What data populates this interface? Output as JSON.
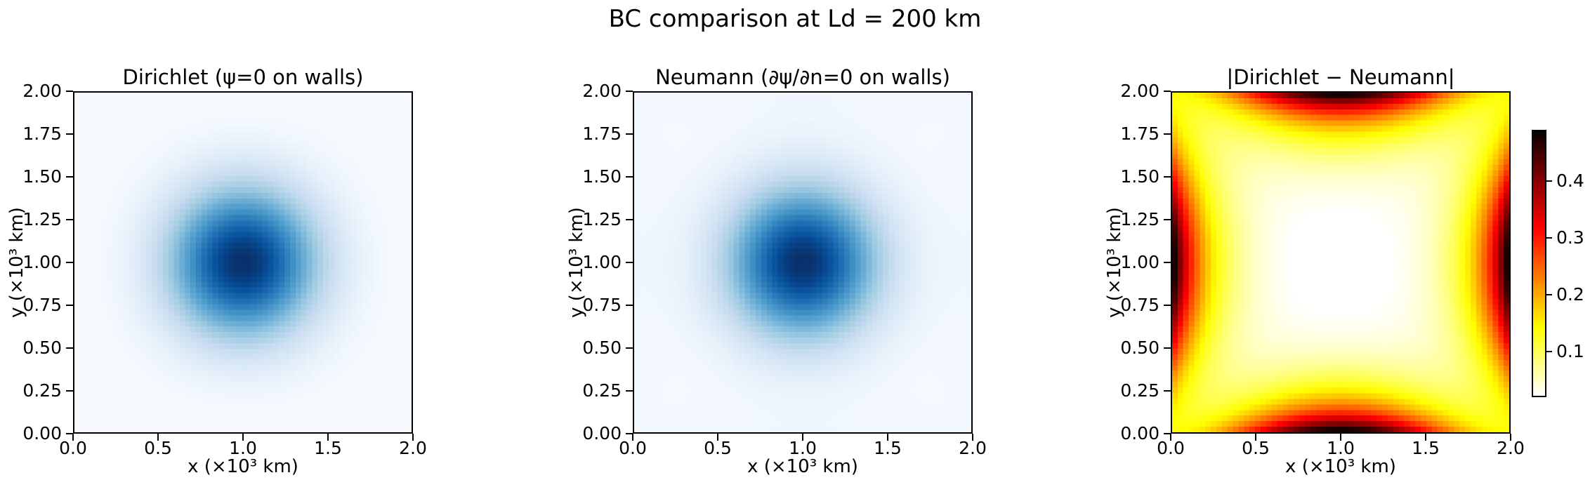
{
  "figure": {
    "title": "BC comparison at Ld = 200 km",
    "background_color": "#ffffff",
    "text_color": "#000000"
  },
  "axes": {
    "xlabel": "x (×10³ km)",
    "ylabel": "y (×10³ km)",
    "xtick_labels": [
      "0.0",
      "0.5",
      "1.0",
      "1.5",
      "2.0"
    ],
    "ytick_labels": [
      "2.00",
      "1.75",
      "1.50",
      "1.25",
      "1.00",
      "0.75",
      "0.50",
      "0.25",
      "0.00"
    ]
  },
  "subplots": [
    {
      "title": "Dirichlet (ψ=0 on walls)"
    },
    {
      "title": "Neumann (∂ψ/∂n=0 on walls)"
    },
    {
      "title": "|Dirichlet − Neumann|"
    }
  ],
  "colorbar": {
    "tick_labels": [
      "0.4",
      "0.3",
      "0.2",
      "0.1"
    ],
    "tick_values": [
      0.4,
      0.3,
      0.2,
      0.1
    ],
    "vmin": 0.02,
    "vmax": 0.49
  },
  "chart_data": [
    {
      "type": "heatmap",
      "title": "Dirichlet (ψ=0 on walls)",
      "xlabel": "x (×10³ km)",
      "ylabel": "y (×10³ km)",
      "x_range": [
        0.0,
        2.0
      ],
      "y_range": [
        0.0,
        2.0
      ],
      "xticks": [
        0.0,
        0.5,
        1.0,
        1.5,
        2.0
      ],
      "yticks": [
        0.0,
        0.25,
        0.5,
        0.75,
        1.0,
        1.25,
        1.5,
        1.75,
        2.0
      ],
      "grid_n": 61,
      "colormap": "Blues",
      "value_range": [
        0.0,
        1.0
      ],
      "model": {
        "kind": "gaussian_dirichlet",
        "cx": 1.0,
        "cy": 1.0,
        "two_sigma_sq": 0.2,
        "peak": 1.0,
        "wall_value": 0.0,
        "bl_thickness": 0.08
      },
      "description": "Gaussian vortex streamfunction centered at (1.0, 1.0), dark-blue core radius ~0.2, field forced to 0 on all walls"
    },
    {
      "type": "heatmap",
      "title": "Neumann (∂ψ/∂n=0 on walls)",
      "xlabel": "x (×10³ km)",
      "ylabel": "y (×10³ km)",
      "x_range": [
        0.0,
        2.0
      ],
      "y_range": [
        0.0,
        2.0
      ],
      "xticks": [
        0.0,
        0.5,
        1.0,
        1.5,
        2.0
      ],
      "yticks": [
        0.0,
        0.25,
        0.5,
        0.75,
        1.0,
        1.25,
        1.5,
        1.75,
        2.0
      ],
      "grid_n": 61,
      "colormap": "Blues",
      "value_range": [
        0.0,
        1.0
      ],
      "model": {
        "kind": "gaussian_neumann",
        "cx": 1.0,
        "cy": 1.0,
        "two_sigma_sq": 0.2,
        "peak": 1.0,
        "wall_lift": 0.03,
        "lift_decay": 0.3
      },
      "description": "Same Gaussian vortex centered at (1.0, 1.0) with zero normal gradient on walls; faint nonzero tint along boundaries"
    },
    {
      "type": "heatmap",
      "title": "|Dirichlet − Neumann|",
      "xlabel": "x (×10³ km)",
      "ylabel": "y (×10³ km)",
      "x_range": [
        0.0,
        2.0
      ],
      "y_range": [
        0.0,
        2.0
      ],
      "xticks": [
        0.0,
        0.5,
        1.0,
        1.5,
        2.0
      ],
      "yticks": [
        0.0,
        0.25,
        0.5,
        0.75,
        1.0,
        1.25,
        1.5,
        1.75,
        2.0
      ],
      "grid_n": 61,
      "colormap": "hot_r",
      "vmin": 0.02,
      "vmax": 0.49,
      "colorbar_ticks": [
        0.1,
        0.2,
        0.3,
        0.4
      ],
      "model": {
        "kind": "wall_difference",
        "amplitude": 0.48,
        "decay_length": 0.2,
        "alongwall_width": 0.72,
        "vmin": 0.02,
        "vmax": 0.49
      },
      "description": "Absolute difference, ~0 (white) in interior center, ~0.13 (yellow) at corners, peaking ~0.49 (black) at the midpoint of each wall, decaying into the domain with e-folding scale Ld = 0.2 (200 km)"
    }
  ],
  "colormaps": {
    "Blues_stops": [
      [
        0.0,
        "#f7fbff"
      ],
      [
        0.125,
        "#deebf7"
      ],
      [
        0.25,
        "#c6dbef"
      ],
      [
        0.375,
        "#9ecae1"
      ],
      [
        0.5,
        "#6baed6"
      ],
      [
        0.625,
        "#4292c6"
      ],
      [
        0.75,
        "#2171b5"
      ],
      [
        0.875,
        "#08519c"
      ],
      [
        1.0,
        "#08306b"
      ]
    ],
    "hot_breakpoints": {
      "red_start": 0.0416,
      "red_end": 0.365,
      "green_end": 0.746
    }
  }
}
